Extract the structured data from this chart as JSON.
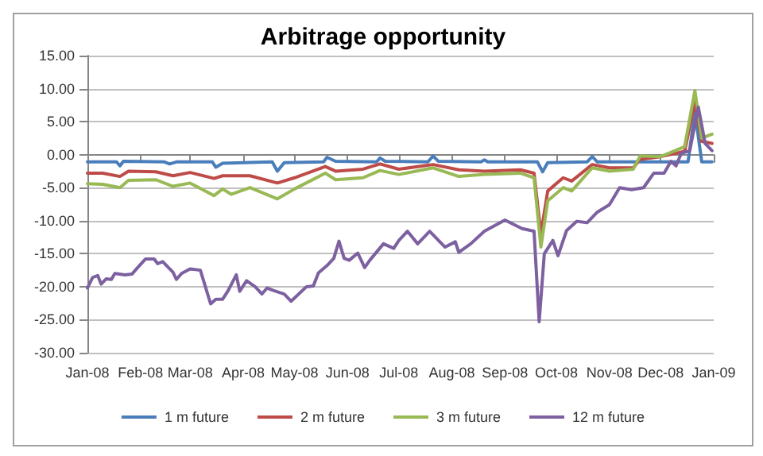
{
  "chart_data": {
    "type": "line",
    "title": "Arbitrage opportunity",
    "xlim": [
      "2008-01-01",
      "2009-01-01"
    ],
    "xticks": [
      {
        "value": "2008-01-01",
        "label": "Jan-08"
      },
      {
        "value": "2008-02-01",
        "label": "Feb-08"
      },
      {
        "value": "2008-03-01",
        "label": "Mar-08"
      },
      {
        "value": "2008-04-01",
        "label": "Apr-08"
      },
      {
        "value": "2008-05-01",
        "label": "May-08"
      },
      {
        "value": "2008-06-01",
        "label": "Jun-08"
      },
      {
        "value": "2008-07-01",
        "label": "Jul-08"
      },
      {
        "value": "2008-08-01",
        "label": "Aug-08"
      },
      {
        "value": "2008-09-01",
        "label": "Sep-08"
      },
      {
        "value": "2008-10-01",
        "label": "Oct-08"
      },
      {
        "value": "2008-11-01",
        "label": "Nov-08"
      },
      {
        "value": "2008-12-01",
        "label": "Dec-08"
      },
      {
        "value": "2009-01-01",
        "label": "Jan-09"
      }
    ],
    "ylim": [
      -30,
      15
    ],
    "yticks": [
      {
        "value": -30,
        "label": "-30.00"
      },
      {
        "value": -25,
        "label": "-25.00"
      },
      {
        "value": -20,
        "label": "-20.00"
      },
      {
        "value": -15,
        "label": "-15.00"
      },
      {
        "value": -10,
        "label": "-10.00"
      },
      {
        "value": -5,
        "label": "-5.00"
      },
      {
        "value": 0,
        "label": "0.00"
      },
      {
        "value": 5,
        "label": "5.00"
      },
      {
        "value": 10,
        "label": "10.00"
      },
      {
        "value": 15,
        "label": "15.00"
      }
    ],
    "grid": "y",
    "legend": "bottom",
    "marker": "none",
    "line_style": "solid",
    "series": [
      {
        "name": "1 m future",
        "color": "#4a7ebb",
        "x": [
          "2008-01-01",
          "2008-01-18",
          "2008-01-20",
          "2008-01-22",
          "2008-02-15",
          "2008-02-18",
          "2008-02-22",
          "2008-03-14",
          "2008-03-16",
          "2008-03-20",
          "2008-04-18",
          "2008-04-21",
          "2008-04-25",
          "2008-05-18",
          "2008-05-20",
          "2008-05-25",
          "2008-06-18",
          "2008-06-20",
          "2008-06-23",
          "2008-07-18",
          "2008-07-21",
          "2008-07-24",
          "2008-08-18",
          "2008-08-20",
          "2008-08-22",
          "2008-09-20",
          "2008-09-23",
          "2008-09-26",
          "2008-10-19",
          "2008-10-22",
          "2008-10-25",
          "2008-12-17",
          "2008-12-21",
          "2008-12-25",
          "2008-12-31"
        ],
        "values": [
          -1.1,
          -1.1,
          -1.7,
          -1.0,
          -1.1,
          -1.4,
          -1.1,
          -1.1,
          -1.9,
          -1.3,
          -1.1,
          -2.5,
          -1.2,
          -1.1,
          -0.4,
          -1.0,
          -1.1,
          -0.5,
          -1.0,
          -1.1,
          -0.2,
          -1.0,
          -1.1,
          -0.8,
          -1.1,
          -1.1,
          -2.6,
          -1.2,
          -1.1,
          -0.3,
          -1.1,
          -1.1,
          6.5,
          -1.1,
          -1.1
        ]
      },
      {
        "name": "2 m future",
        "color": "#be4b48",
        "x": [
          "2008-01-01",
          "2008-01-10",
          "2008-01-20",
          "2008-01-25",
          "2008-02-10",
          "2008-02-20",
          "2008-03-01",
          "2008-03-15",
          "2008-03-20",
          "2008-04-05",
          "2008-04-21",
          "2008-05-01",
          "2008-05-19",
          "2008-05-25",
          "2008-06-10",
          "2008-06-20",
          "2008-07-01",
          "2008-07-21",
          "2008-08-05",
          "2008-08-20",
          "2008-09-10",
          "2008-09-18",
          "2008-09-22",
          "2008-09-26",
          "2008-10-05",
          "2008-10-10",
          "2008-10-22",
          "2008-11-01",
          "2008-11-15",
          "2008-11-19",
          "2008-12-01",
          "2008-12-15",
          "2008-12-21",
          "2008-12-25",
          "2008-12-31"
        ],
        "values": [
          -2.8,
          -2.8,
          -3.3,
          -2.5,
          -2.6,
          -3.2,
          -2.7,
          -3.6,
          -3.2,
          -3.2,
          -4.3,
          -3.5,
          -1.8,
          -2.5,
          -2.2,
          -1.4,
          -2.2,
          -1.5,
          -2.3,
          -2.5,
          -2.3,
          -2.8,
          -12,
          -5.5,
          -3.5,
          -4.0,
          -1.5,
          -2.0,
          -2.0,
          -0.7,
          -0.3,
          0.5,
          8.0,
          2.0,
          1.7
        ]
      },
      {
        "name": "3 m future",
        "color": "#98b954",
        "x": [
          "2008-01-01",
          "2008-01-10",
          "2008-01-20",
          "2008-01-25",
          "2008-02-10",
          "2008-02-20",
          "2008-03-01",
          "2008-03-15",
          "2008-03-20",
          "2008-03-25",
          "2008-04-05",
          "2008-04-21",
          "2008-05-01",
          "2008-05-19",
          "2008-05-25",
          "2008-06-10",
          "2008-06-20",
          "2008-07-01",
          "2008-07-21",
          "2008-08-05",
          "2008-08-20",
          "2008-09-10",
          "2008-09-18",
          "2008-09-22",
          "2008-09-26",
          "2008-10-05",
          "2008-10-10",
          "2008-10-22",
          "2008-11-01",
          "2008-11-15",
          "2008-11-19",
          "2008-12-01",
          "2008-12-15",
          "2008-12-21",
          "2008-12-25",
          "2008-12-31"
        ],
        "values": [
          -4.4,
          -4.5,
          -5.0,
          -3.9,
          -3.8,
          -4.8,
          -4.3,
          -6.2,
          -5.2,
          -6.0,
          -5.0,
          -6.7,
          -5.2,
          -2.8,
          -3.8,
          -3.5,
          -2.4,
          -3.0,
          -2.0,
          -3.3,
          -3.0,
          -2.8,
          -3.5,
          -14,
          -7.0,
          -5.0,
          -5.5,
          -2.0,
          -2.5,
          -2.2,
          -0.2,
          -0.3,
          1.2,
          9.7,
          2.5,
          3.1
        ]
      },
      {
        "name": "12 m future",
        "color": "#7d60a0",
        "x": [
          "2008-01-01",
          "2008-01-04",
          "2008-01-07",
          "2008-01-09",
          "2008-01-12",
          "2008-01-15",
          "2008-01-17",
          "2008-01-23",
          "2008-01-27",
          "2008-01-30",
          "2008-02-04",
          "2008-02-09",
          "2008-02-11",
          "2008-02-14",
          "2008-02-20",
          "2008-02-22",
          "2008-02-25",
          "2008-03-01",
          "2008-03-07",
          "2008-03-13",
          "2008-03-16",
          "2008-03-20",
          "2008-03-23",
          "2008-03-28",
          "2008-03-30",
          "2008-04-03",
          "2008-04-08",
          "2008-04-12",
          "2008-04-15",
          "2008-04-19",
          "2008-04-25",
          "2008-04-29",
          "2008-05-08",
          "2008-05-12",
          "2008-05-15",
          "2008-05-20",
          "2008-05-24",
          "2008-05-27",
          "2008-05-30",
          "2008-06-02",
          "2008-06-07",
          "2008-06-11",
          "2008-06-14",
          "2008-06-22",
          "2008-06-28",
          "2008-07-01",
          "2008-07-06",
          "2008-07-12",
          "2008-07-19",
          "2008-07-28",
          "2008-08-03",
          "2008-08-05",
          "2008-08-12",
          "2008-08-20",
          "2008-09-01",
          "2008-09-11",
          "2008-09-18",
          "2008-09-21",
          "2008-09-24",
          "2008-09-29",
          "2008-10-02",
          "2008-10-07",
          "2008-10-13",
          "2008-10-19",
          "2008-10-25",
          "2008-11-01",
          "2008-11-07",
          "2008-11-14",
          "2008-11-21",
          "2008-11-27",
          "2008-12-03",
          "2008-12-07",
          "2008-12-10",
          "2008-12-13",
          "2008-12-18",
          "2008-12-23",
          "2008-12-27",
          "2008-12-31"
        ],
        "values": [
          -20.2,
          -18.6,
          -18.3,
          -19.6,
          -18.8,
          -18.9,
          -18.0,
          -18.2,
          -18.1,
          -17.2,
          -15.8,
          -15.8,
          -16.5,
          -16.2,
          -17.8,
          -18.9,
          -18.0,
          -17.3,
          -17.5,
          -22.6,
          -21.9,
          -21.9,
          -20.7,
          -18.2,
          -20.7,
          -19.1,
          -20.0,
          -21.1,
          -20.2,
          -20.6,
          -21.1,
          -22.2,
          -20.0,
          -19.9,
          -17.9,
          -16.8,
          -15.7,
          -13.1,
          -15.7,
          -16.0,
          -14.9,
          -17.1,
          -16.0,
          -13.5,
          -14.2,
          -13.0,
          -11.6,
          -13.5,
          -11.6,
          -14.0,
          -13.2,
          -14.8,
          -13.5,
          -11.6,
          -9.9,
          -11.2,
          -11.6,
          -25.3,
          -15.0,
          -13.0,
          -15.3,
          -11.5,
          -10.1,
          -10.3,
          -8.7,
          -7.6,
          -5.0,
          -5.3,
          -5.0,
          -2.8,
          -2.8,
          -1.0,
          -1.7,
          0.2,
          0.6,
          7.2,
          1.7,
          0.6
        ]
      }
    ]
  }
}
